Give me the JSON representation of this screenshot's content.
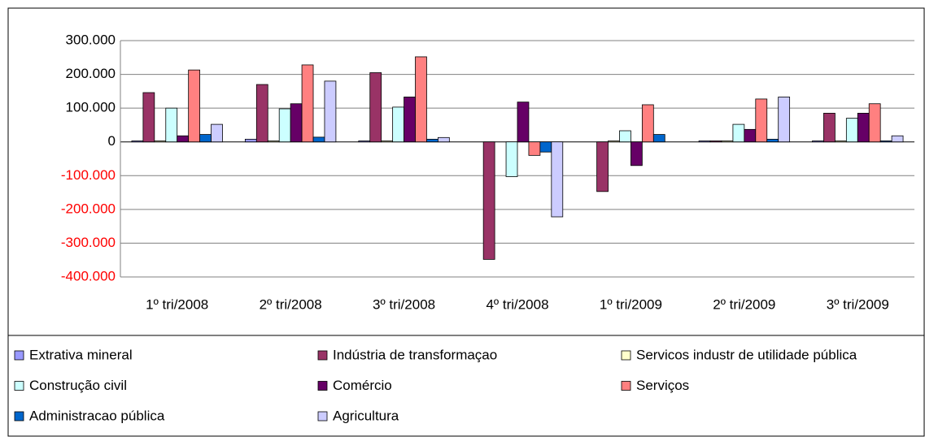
{
  "chart_data": {
    "type": "bar",
    "categories": [
      "1º tri/2008",
      "2º tri/2008",
      "3º tri/2008",
      "4º tri/2008",
      "1º tri/2009",
      "2º tri/2009",
      "3º tri/2009"
    ],
    "series": [
      {
        "name": "Extrativa mineral",
        "color": "#9999ff",
        "values": [
          3000,
          8000,
          3000,
          0,
          0,
          3000,
          3000
        ]
      },
      {
        "name": "Indústria de transformaçao",
        "color": "#993366",
        "values": [
          146000,
          170000,
          205000,
          -348000,
          -147000,
          3000,
          85000
        ]
      },
      {
        "name": "Servicos industr de utilidade pública",
        "color": "#ffffcc",
        "values": [
          3000,
          3000,
          3000,
          0,
          3000,
          3000,
          3000
        ]
      },
      {
        "name": "Construção civil",
        "color": "#ccffff",
        "values": [
          100000,
          98000,
          103000,
          -103000,
          33000,
          52000,
          70000
        ]
      },
      {
        "name": "Comércio",
        "color": "#660066",
        "values": [
          18000,
          113000,
          133000,
          118000,
          -70000,
          37000,
          85000
        ]
      },
      {
        "name": "Serviços",
        "color": "#ff8080",
        "values": [
          213000,
          228000,
          252000,
          -40000,
          110000,
          127000,
          113000
        ]
      },
      {
        "name": "Administracao pública",
        "color": "#0066cc",
        "values": [
          22000,
          14000,
          8000,
          -30000,
          22000,
          8000,
          3000
        ]
      },
      {
        "name": "Agricultura",
        "color": "#ccccff",
        "values": [
          52000,
          180000,
          13000,
          -222000,
          0,
          133000,
          18000
        ]
      }
    ],
    "ylim": [
      -400000,
      300000
    ],
    "yticks": [
      {
        "value": -400000,
        "label": "-400.000"
      },
      {
        "value": -300000,
        "label": "-300.000"
      },
      {
        "value": -200000,
        "label": "-200.000"
      },
      {
        "value": -100000,
        "label": "-100.000"
      },
      0,
      {
        "value": 100000,
        "label": "100.000"
      },
      {
        "value": 200000,
        "label": "200.000"
      },
      {
        "value": 300000,
        "label": "300.000"
      }
    ],
    "grid": true,
    "legend": "bottom"
  }
}
